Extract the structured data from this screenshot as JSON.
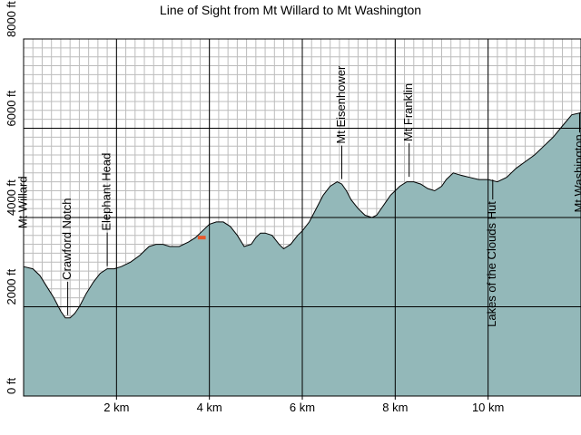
{
  "chart_data": {
    "type": "area",
    "title": "Line of Sight from Mt Willard to Mt Washington",
    "xlabel": "",
    "ylabel": "",
    "x_unit": "km",
    "y_unit": "ft",
    "xlim": [
      0,
      12
    ],
    "ylim": [
      0,
      8000
    ],
    "x_ticks": [
      2,
      4,
      6,
      8,
      10
    ],
    "x_tick_labels": [
      "2 km",
      "4 km",
      "6 km",
      "8 km",
      "10 km"
    ],
    "y_ticks": [
      0,
      2000,
      4000,
      6000,
      8000
    ],
    "y_tick_labels": [
      "0 ft",
      "2000 ft",
      "4000 ft",
      "6000 ft",
      "8000 ft"
    ],
    "grid": true,
    "profile_x": [
      0,
      0.2,
      0.35,
      0.5,
      0.65,
      0.8,
      0.9,
      1.0,
      1.1,
      1.2,
      1.35,
      1.5,
      1.65,
      1.8,
      1.95,
      2.1,
      2.3,
      2.5,
      2.7,
      2.85,
      3.0,
      3.15,
      3.35,
      3.55,
      3.7,
      3.85,
      4.0,
      4.15,
      4.3,
      4.45,
      4.6,
      4.75,
      4.9,
      5.0,
      5.1,
      5.2,
      5.35,
      5.5,
      5.6,
      5.75,
      5.9,
      6.0,
      6.15,
      6.3,
      6.45,
      6.6,
      6.75,
      6.85,
      6.95,
      7.05,
      7.2,
      7.35,
      7.5,
      7.6,
      7.7,
      7.8,
      7.9,
      8.0,
      8.1,
      8.25,
      8.4,
      8.55,
      8.7,
      8.85,
      9.0,
      9.1,
      9.25,
      9.4,
      9.6,
      9.8,
      10.0,
      10.2,
      10.4,
      10.6,
      10.8,
      11.0,
      11.2,
      11.4,
      11.6,
      11.8,
      12.0
    ],
    "profile_y": [
      2900,
      2850,
      2700,
      2450,
      2200,
      1900,
      1750,
      1750,
      1850,
      2000,
      2300,
      2550,
      2750,
      2850,
      2850,
      2900,
      3000,
      3150,
      3350,
      3400,
      3400,
      3350,
      3350,
      3450,
      3550,
      3700,
      3850,
      3900,
      3900,
      3800,
      3600,
      3350,
      3400,
      3550,
      3650,
      3650,
      3600,
      3400,
      3300,
      3400,
      3600,
      3700,
      3900,
      4200,
      4500,
      4700,
      4800,
      4750,
      4600,
      4400,
      4200,
      4050,
      4000,
      4050,
      4200,
      4350,
      4500,
      4600,
      4700,
      4800,
      4800,
      4750,
      4650,
      4600,
      4700,
      4850,
      5000,
      4950,
      4900,
      4850,
      4850,
      4800,
      4900,
      5100,
      5250,
      5400,
      5600,
      5800,
      6050,
      6300,
      6350
    ],
    "sightline": {
      "x": [
        3.75,
        3.92
      ],
      "y": [
        3550,
        3550
      ],
      "color": "#e8572a"
    },
    "landmarks": [
      {
        "name": "Mt Willard",
        "x": 0.0,
        "y": 2900,
        "side": "above"
      },
      {
        "name": "Crawford Notch",
        "x": 0.95,
        "y": 1750,
        "side": "above"
      },
      {
        "name": "Elephant Head",
        "x": 1.8,
        "y": 2850,
        "side": "above"
      },
      {
        "name": "Mt Eisenhower",
        "x": 6.85,
        "y": 4800,
        "side": "above"
      },
      {
        "name": "Mt Franklin",
        "x": 8.3,
        "y": 4850,
        "side": "above"
      },
      {
        "name": "Lakes of the Clouds Hut",
        "x": 10.1,
        "y": 4850,
        "side": "below"
      },
      {
        "name": "Mt Washington",
        "x": 11.97,
        "y": 6350,
        "side": "below"
      }
    ],
    "fill_color": "#93b8b9",
    "grid_color": "#bcbcbc",
    "major_grid_color": "#000000",
    "plot_background": "#ffffff"
  }
}
